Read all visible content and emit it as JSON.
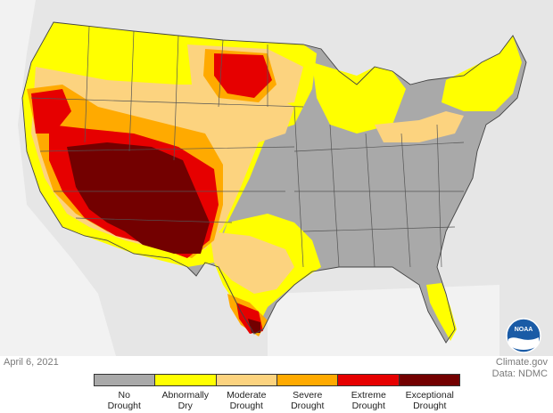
{
  "date": "April 6, 2021",
  "credit": {
    "site": "Climate.gov",
    "data_source": "Data: NDMC"
  },
  "logo": {
    "text": "NOAA",
    "icon": "noaa-logo"
  },
  "legend": [
    {
      "line1": "No",
      "line2": "Drought",
      "color": "#a9a9a9"
    },
    {
      "line1": "Abnormally",
      "line2": "Dry",
      "color": "#ffff00"
    },
    {
      "line1": "Moderate",
      "line2": "Drought",
      "color": "#fcd37f"
    },
    {
      "line1": "Severe",
      "line2": "Drought",
      "color": "#ffaa00"
    },
    {
      "line1": "Extreme",
      "line2": "Drought",
      "color": "#e60000"
    },
    {
      "line1": "Exceptional",
      "line2": "Drought",
      "color": "#730000"
    }
  ],
  "colors": {
    "ocean_land_background": "#e6e6e6",
    "state_border": "#555555"
  }
}
